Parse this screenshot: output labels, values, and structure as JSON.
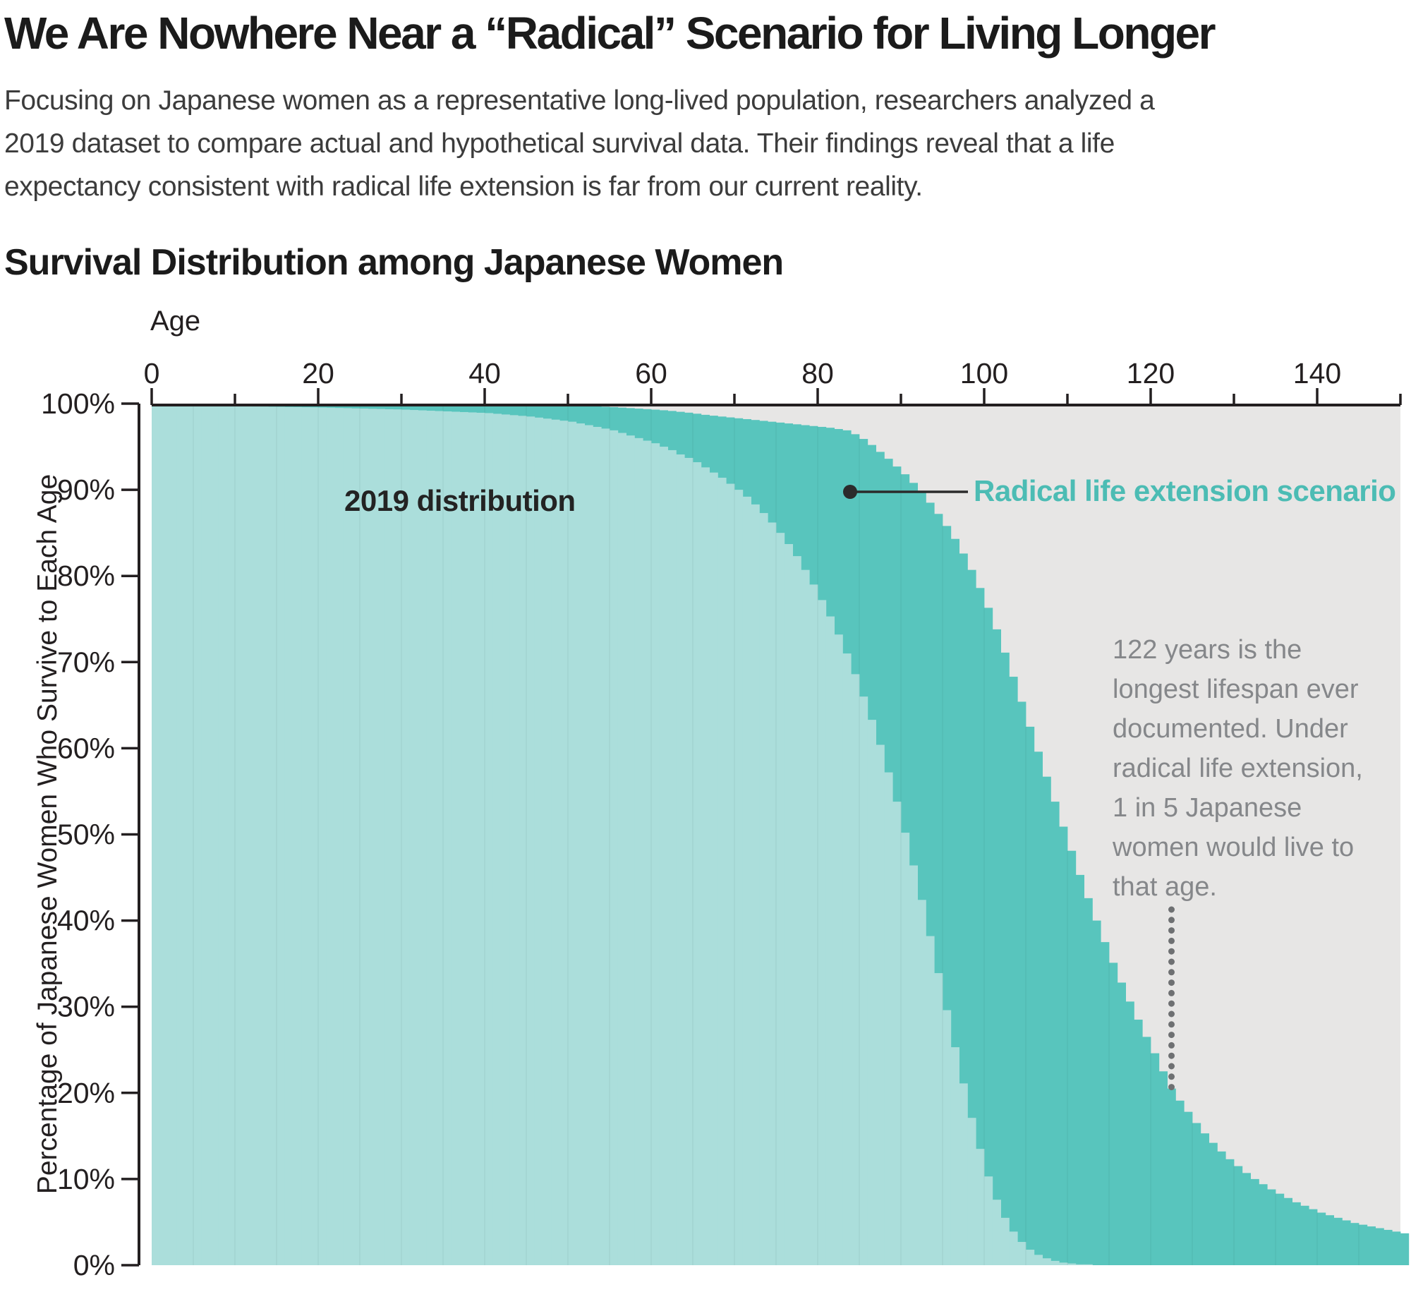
{
  "header": {
    "title": "We Are Nowhere Near a “Radical” Scenario for Living Longer",
    "subtitle_lines": [
      "Focusing on Japanese women as a representative long-lived population, researchers analyzed a",
      "2019 dataset to compare actual and hypothetical survival data. Their findings reveal that a life",
      "expectancy consistent with radical life extension is far from our current reality."
    ],
    "chart_heading": "Survival Distribution among Japanese Women"
  },
  "labels": {
    "x_axis_title": "Age",
    "y_axis_title": "Percentage of Japanese Women Who Survive to Each Age",
    "series_2019": "2019 distribution",
    "series_radical": "Radical life extension scenario",
    "annotation_lines": [
      "122 years is the",
      "longest lifespan ever",
      "documented. Under",
      "radical life extension,",
      "1 in 5 Japanese",
      "women would live to",
      "that age."
    ]
  },
  "colors": {
    "area_2019": "#abdedb",
    "area_radical": "#58c5bd",
    "plot_background": "#e7e6e5",
    "axis": "#231f20",
    "radical_label": "#4cbcb4",
    "annotation_gray": "#85878a",
    "dotted_line": "#6e7072",
    "leader": "#2b2b2b"
  },
  "chart_data": {
    "type": "area",
    "title": "Survival Distribution among Japanese Women",
    "xlabel": "Age",
    "ylabel": "Percentage of Japanese Women Who Survive to Each Age",
    "xlim": [
      0,
      150
    ],
    "ylim": [
      0,
      100
    ],
    "grid": false,
    "x_ticks_major": [
      0,
      20,
      40,
      60,
      80,
      100,
      120,
      140
    ],
    "x_tick_labels": [
      "0",
      "20",
      "40",
      "60",
      "80",
      "100",
      "120",
      "140"
    ],
    "x_ticks_minor": [
      10,
      30,
      50,
      70,
      90,
      110,
      130,
      150
    ],
    "y_ticks": [
      {
        "p": 100,
        "label": "100%"
      },
      {
        "p": 90,
        "label": "90%"
      },
      {
        "p": 80,
        "label": "80%"
      },
      {
        "p": 70,
        "label": "70%"
      },
      {
        "p": 60,
        "label": "60%"
      },
      {
        "p": 50,
        "label": "50%"
      },
      {
        "p": 40,
        "label": "40%"
      },
      {
        "p": 30,
        "label": "30%"
      },
      {
        "p": 20,
        "label": "20%"
      },
      {
        "p": 10,
        "label": "10%"
      },
      {
        "p": 0,
        "label": "0%"
      }
    ],
    "x": "ages 0-150, one bar per year",
    "series": [
      {
        "name": "2019 distribution",
        "values": [
          100,
          99.8,
          99.79,
          99.78,
          99.77,
          99.76,
          99.75,
          99.74,
          99.72,
          99.71,
          99.7,
          99.69,
          99.67,
          99.66,
          99.64,
          99.63,
          99.61,
          99.6,
          99.58,
          99.57,
          99.55,
          99.53,
          99.5,
          99.48,
          99.45,
          99.43,
          99.4,
          99.38,
          99.35,
          99.33,
          99.3,
          99.26,
          99.22,
          99.18,
          99.14,
          99.1,
          99.06,
          99.02,
          98.98,
          98.94,
          98.9,
          98.82,
          98.74,
          98.66,
          98.58,
          98.5,
          98.38,
          98.26,
          98.14,
          98.02,
          97.9,
          97.7,
          97.5,
          97.3,
          97.1,
          96.9,
          96.6,
          96.3,
          96.0,
          95.7,
          95.4,
          95.0,
          94.6,
          94.1,
          93.7,
          93.2,
          92.6,
          92.0,
          91.4,
          90.7,
          90.0,
          89.2,
          88.3,
          87.3,
          86.2,
          85.0,
          83.7,
          82.3,
          80.7,
          79.0,
          77.2,
          75.3,
          73.2,
          71.0,
          68.6,
          66.0,
          63.3,
          60.4,
          57.2,
          53.8,
          50.2,
          46.4,
          42.4,
          38.2,
          33.9,
          29.6,
          25.3,
          21.1,
          17.1,
          13.5,
          10.3,
          7.6,
          5.5,
          3.9,
          2.7,
          1.8,
          1.2,
          0.8,
          0.5,
          0.3,
          0.2,
          0.1,
          0.1,
          0,
          0,
          0,
          0,
          0,
          0,
          0,
          0,
          0,
          0,
          0,
          0,
          0,
          0,
          0,
          0,
          0,
          0,
          0,
          0,
          0,
          0,
          0,
          0,
          0,
          0,
          0,
          0,
          0,
          0,
          0,
          0,
          0,
          0,
          0,
          0,
          0,
          0
        ]
      },
      {
        "name": "Radical life extension scenario",
        "values": [
          100,
          100,
          100,
          100,
          100,
          100,
          100,
          100,
          100,
          100,
          100,
          100,
          100,
          100,
          100,
          100,
          100,
          100,
          100,
          100,
          100,
          100,
          100,
          100,
          100,
          100,
          100,
          100,
          100,
          100,
          100,
          100,
          100,
          100,
          100,
          100,
          100,
          100,
          100,
          99.95,
          99.95,
          99.94,
          99.93,
          99.92,
          99.91,
          99.9,
          99.88,
          99.86,
          99.84,
          99.82,
          99.8,
          99.76,
          99.72,
          99.68,
          99.64,
          99.6,
          99.54,
          99.48,
          99.42,
          99.36,
          99.3,
          99.23,
          99.15,
          99.05,
          98.95,
          98.83,
          98.7,
          98.6,
          98.5,
          98.4,
          98.3,
          98.2,
          98.1,
          98.0,
          97.9,
          97.8,
          97.7,
          97.6,
          97.5,
          97.4,
          97.3,
          97.2,
          97.05,
          96.9,
          96.45,
          95.9,
          95.2,
          94.4,
          93.6,
          92.7,
          91.8,
          90.8,
          89.7,
          88.5,
          87.2,
          85.8,
          84.3,
          82.6,
          80.7,
          78.6,
          76.3,
          73.8,
          71.1,
          68.3,
          65.4,
          62.5,
          59.6,
          56.7,
          53.8,
          50.9,
          48.1,
          45.3,
          42.6,
          40.0,
          37.5,
          35.1,
          32.8,
          30.6,
          28.5,
          26.5,
          24.6,
          22.5,
          20.5,
          19.1,
          17.8,
          16.5,
          15.3,
          14.2,
          13.2,
          12.3,
          11.5,
          10.7,
          10.0,
          9.4,
          8.8,
          8.3,
          7.8,
          7.3,
          6.9,
          6.5,
          6.1,
          5.8,
          5.5,
          5.2,
          4.9,
          4.7,
          4.5,
          4.3,
          4.1,
          3.9,
          3.7
        ]
      }
    ],
    "annotations": {
      "longest_lifespan_age": 122,
      "radical_survival_at_122_pct": 20.5
    },
    "legend_position": "inside-plot"
  }
}
